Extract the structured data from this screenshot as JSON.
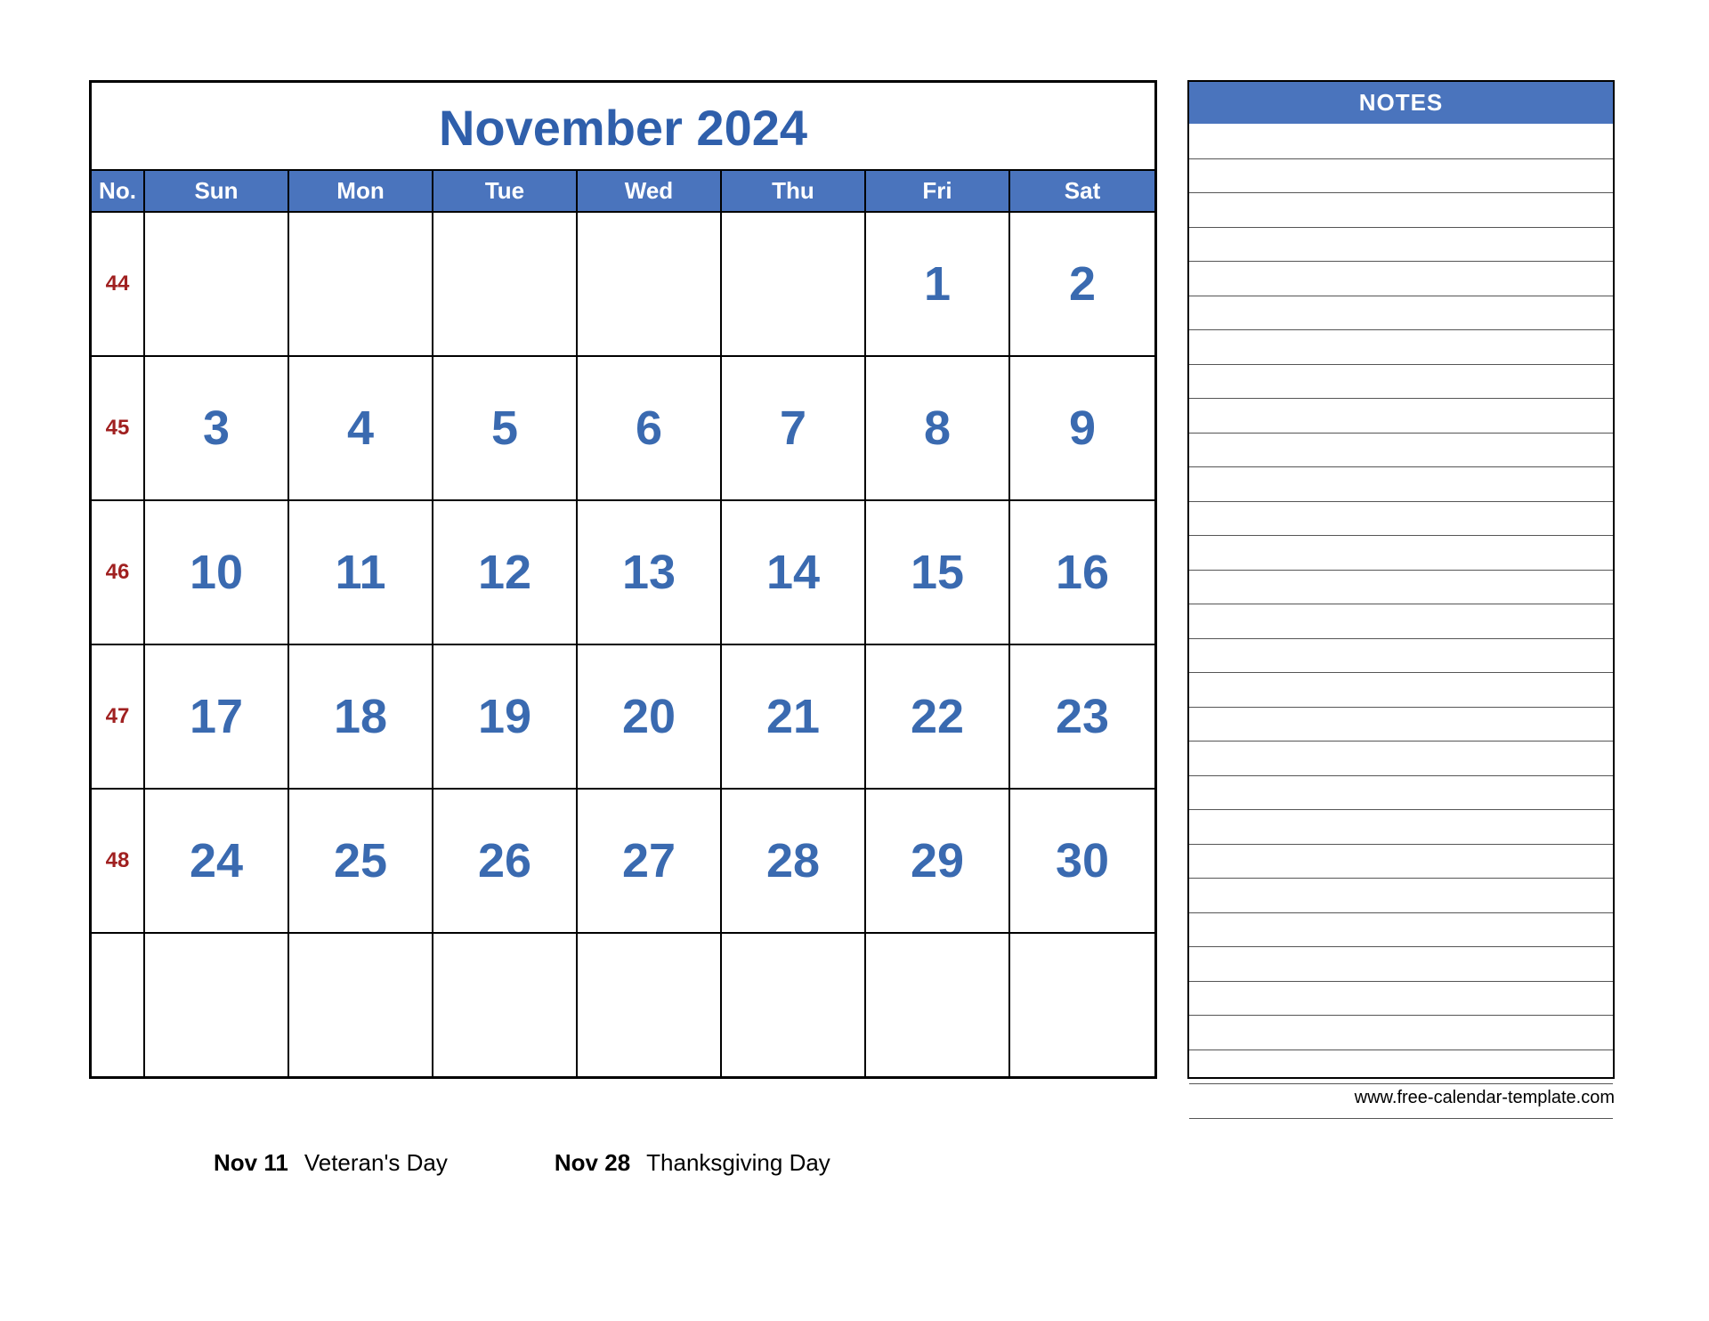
{
  "colors": {
    "accent": "#4a74bd",
    "title_text": "#2f5fab",
    "day_number": "#3a6ab0",
    "week_no": "#a02020",
    "border": "#000000",
    "notes_line": "#555555",
    "background": "#ffffff"
  },
  "calendar": {
    "title": "November 2024",
    "header_no_label": "No.",
    "day_headers": [
      "Sun",
      "Mon",
      "Tue",
      "Wed",
      "Thu",
      "Fri",
      "Sat"
    ],
    "weeks": [
      {
        "no": "44",
        "days": [
          "",
          "",
          "",
          "",
          "",
          "1",
          "2"
        ]
      },
      {
        "no": "45",
        "days": [
          "3",
          "4",
          "5",
          "6",
          "7",
          "8",
          "9"
        ]
      },
      {
        "no": "46",
        "days": [
          "10",
          "11",
          "12",
          "13",
          "14",
          "15",
          "16"
        ]
      },
      {
        "no": "47",
        "days": [
          "17",
          "18",
          "19",
          "20",
          "21",
          "22",
          "23"
        ]
      },
      {
        "no": "48",
        "days": [
          "24",
          "25",
          "26",
          "27",
          "28",
          "29",
          "30"
        ]
      },
      {
        "no": "",
        "days": [
          "",
          "",
          "",
          "",
          "",
          "",
          ""
        ]
      }
    ]
  },
  "notes": {
    "title": "NOTES",
    "line_count": 30
  },
  "footer_url": "www.free-calendar-template.com",
  "holidays": [
    {
      "date": "Nov 11",
      "name": "Veteran's Day"
    },
    {
      "date": "Nov 28",
      "name": "Thanksgiving Day"
    }
  ]
}
